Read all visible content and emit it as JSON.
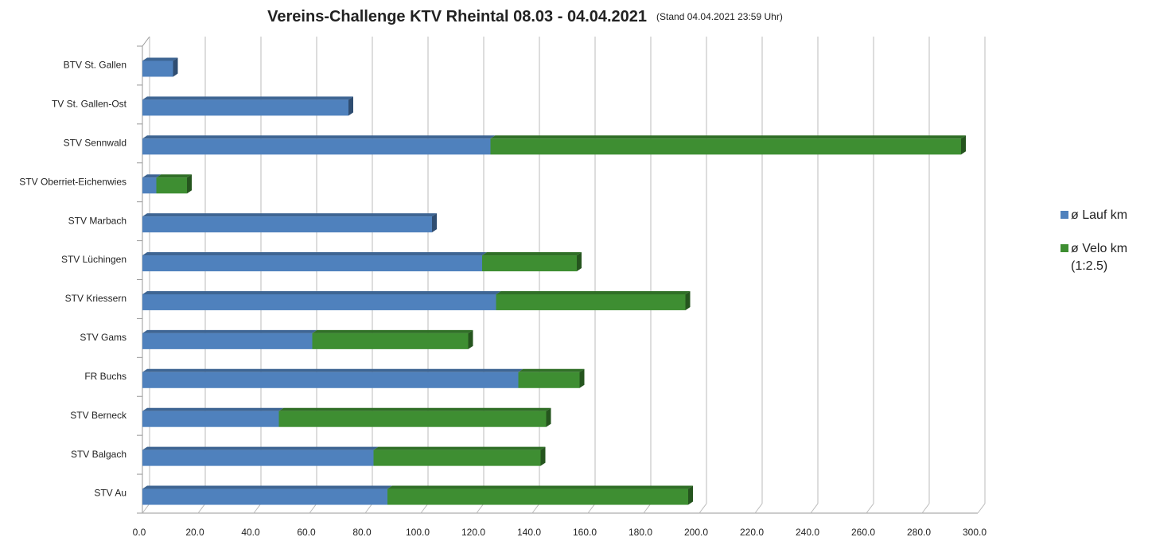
{
  "chart_data": {
    "type": "stacked-bar-horizontal",
    "title": "Vereins-Challenge KTV Rheintal 08.03 - 04.04.2021",
    "subtitle": "(Stand 04.04.2021 23:59 Uhr)",
    "categories": [
      "BTV St. Gallen",
      "TV St. Gallen-Ost",
      "STV Sennwald",
      "STV Oberriet-Eichenwies",
      "STV Marbach",
      "STV Lüchingen",
      "STV Kriessern",
      "STV Gams",
      "FR Buchs",
      "STV Berneck",
      "STV Balgach",
      "STV Au"
    ],
    "series": [
      {
        "name": "ø Lauf km",
        "color": "#4f81bd",
        "values": [
          11,
          74,
          125,
          5,
          104,
          122,
          127,
          61,
          135,
          49,
          83,
          88
        ]
      },
      {
        "name": "ø Velo km (1:2.5)",
        "color": "#3e8e32",
        "values": [
          0,
          0,
          169,
          11,
          0,
          34,
          68,
          56,
          22,
          96,
          60,
          108
        ]
      }
    ],
    "xlim": [
      0,
      300
    ],
    "xticks": [
      {
        "value": 0,
        "label": "0.0"
      },
      {
        "value": 20,
        "label": "20.0"
      },
      {
        "value": 40,
        "label": "40.0"
      },
      {
        "value": 60,
        "label": "60.0"
      },
      {
        "value": 80,
        "label": "80.0"
      },
      {
        "value": 100,
        "label": "100.0"
      },
      {
        "value": 120,
        "label": "120.0"
      },
      {
        "value": 140,
        "label": "140.0"
      },
      {
        "value": 160,
        "label": "160.0"
      },
      {
        "value": 180,
        "label": "180.0"
      },
      {
        "value": 200,
        "label": "200.0"
      },
      {
        "value": 220,
        "label": "220.0"
      },
      {
        "value": 240,
        "label": "240.0"
      },
      {
        "value": 260,
        "label": "260.0"
      },
      {
        "value": 280,
        "label": "280.0"
      },
      {
        "value": 300,
        "label": "300.0"
      }
    ],
    "grid": true,
    "legend": "right"
  }
}
